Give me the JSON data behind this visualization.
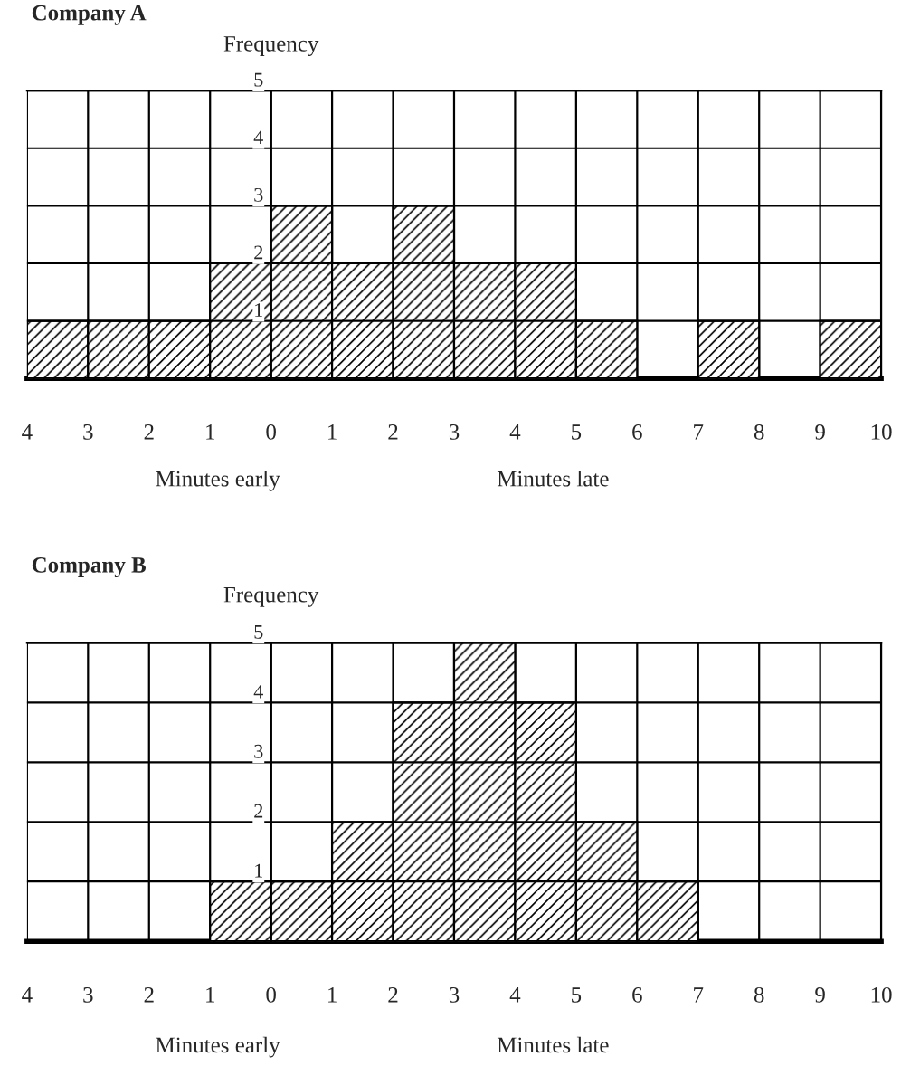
{
  "chart_data": [
    {
      "type": "histogram",
      "title": "Company A",
      "ylabel": "Frequency",
      "bins": [
        -4,
        -3,
        -2,
        -1,
        0,
        1,
        2,
        3,
        4,
        5,
        6,
        7,
        8,
        9,
        10
      ],
      "values": [
        1,
        1,
        1,
        2,
        3,
        2,
        3,
        2,
        2,
        1,
        0,
        1,
        0,
        1
      ],
      "color": "#000000",
      "xlim": [
        -4,
        10
      ],
      "ylim": [
        0,
        5
      ],
      "xticks": [
        {
          "value": -4,
          "label": "4"
        },
        {
          "value": -3,
          "label": "3"
        },
        {
          "value": -2,
          "label": "2"
        },
        {
          "value": -1,
          "label": "1"
        },
        0,
        1,
        2,
        3,
        4,
        5,
        6,
        7,
        8,
        9,
        10
      ],
      "yticks": [
        1,
        2,
        3,
        4,
        5
      ],
      "grid": true,
      "annotations": [
        "Minutes early",
        "Minutes late"
      ]
    },
    {
      "type": "histogram",
      "title": "Company B",
      "ylabel": "Frequency",
      "bins": [
        -4,
        -3,
        -2,
        -1,
        0,
        1,
        2,
        3,
        4,
        5,
        6,
        7,
        8,
        9,
        10
      ],
      "values": [
        0,
        0,
        0,
        1,
        1,
        2,
        4,
        5,
        4,
        2,
        1,
        0,
        0,
        0
      ],
      "color": "#000000",
      "xlim": [
        -4,
        10
      ],
      "ylim": [
        0,
        5
      ],
      "xticks": [
        {
          "value": -4,
          "label": "4"
        },
        {
          "value": -3,
          "label": "3"
        },
        {
          "value": -2,
          "label": "2"
        },
        {
          "value": -1,
          "label": "1"
        },
        0,
        1,
        2,
        3,
        4,
        5,
        6,
        7,
        8,
        9,
        10
      ],
      "yticks": [
        1,
        2,
        3,
        4,
        5
      ],
      "grid": true,
      "annotations": [
        "Minutes early",
        "Minutes late"
      ]
    }
  ]
}
